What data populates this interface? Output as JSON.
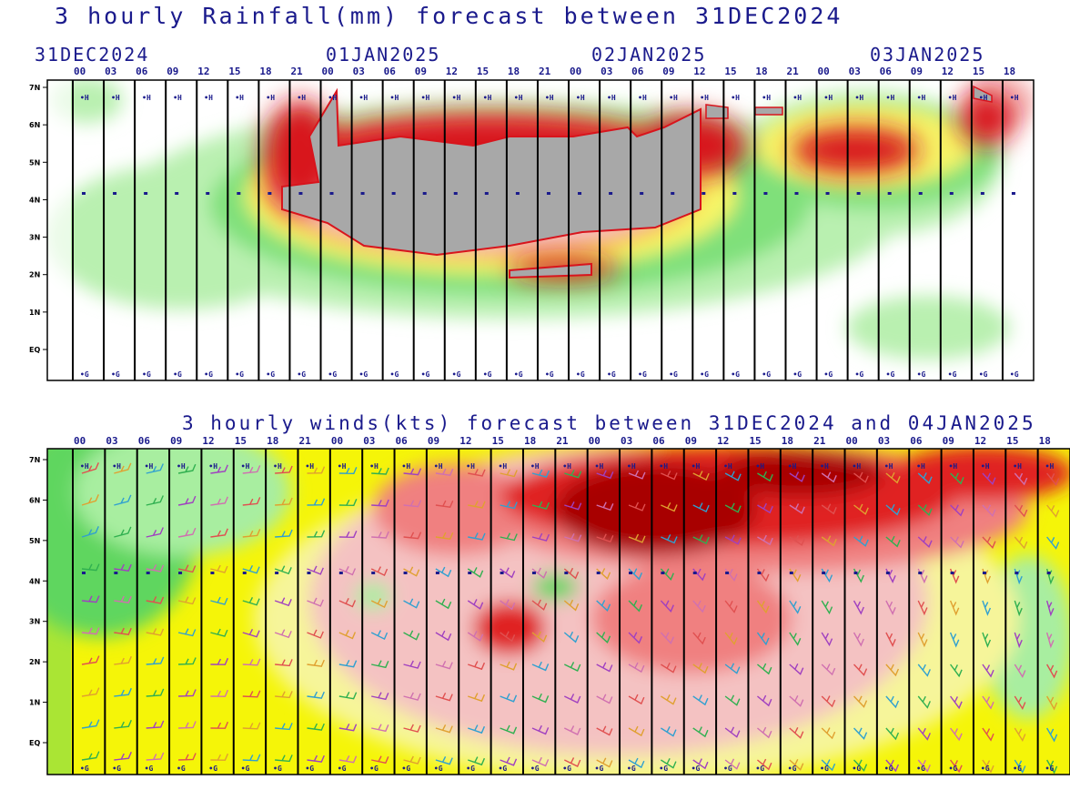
{
  "rainfall": {
    "title": "3 hourly Rainfall(mm) forecast between 31DEC2024",
    "dates": [
      "31DEC2024",
      "01JAN2025",
      "02JAN2025",
      "03JAN2025"
    ],
    "hours": [
      "00",
      "03",
      "06",
      "09",
      "12",
      "15",
      "18",
      "21",
      "00",
      "03",
      "06",
      "09",
      "12",
      "15",
      "18",
      "21",
      "00",
      "03",
      "06",
      "09",
      "12",
      "15",
      "18",
      "21",
      "00",
      "03",
      "06",
      "09",
      "12",
      "15",
      "18"
    ],
    "lat_labels": [
      "7N",
      "6N",
      "5N",
      "4N",
      "3N",
      "2N",
      "1N",
      "EQ"
    ],
    "markers": {
      "top": "H",
      "bottom": "G"
    },
    "colors": {
      "light_green": "#b9f0b0",
      "green": "#7fe07a",
      "yellow": "#f7f566",
      "orange": "#f7a840",
      "red": "#d8141c",
      "pink": "#f6c0c0",
      "gray": "#a8a8a8"
    }
  },
  "winds": {
    "title": "3 hourly winds(kts) forecast between 31DEC2024 and 04JAN2025",
    "hours": [
      "00",
      "03",
      "06",
      "09",
      "12",
      "15",
      "18",
      "21",
      "00",
      "03",
      "06",
      "09",
      "12",
      "15",
      "18",
      "21",
      "00",
      "03",
      "06",
      "09",
      "12",
      "15",
      "18",
      "21",
      "00",
      "03",
      "06",
      "09",
      "12",
      "15",
      "18"
    ],
    "lat_labels": [
      "7N",
      "6N",
      "5N",
      "4N",
      "3N",
      "2N",
      "1N",
      "EQ"
    ],
    "markers": {
      "top": "H",
      "bottom": "G"
    },
    "colors": {
      "green": "#5fd65f",
      "light_green": "#a8eea0",
      "yellow": "#f5f508",
      "pale_yellow": "#f6f59a",
      "pink": "#f4c2c2",
      "light_red": "#f08080",
      "red": "#e02020",
      "dark_red": "#a80000"
    },
    "barb_colors": [
      "#e05050",
      "#e0a030",
      "#30a0d0",
      "#30b050",
      "#a040c0",
      "#d070b0"
    ]
  },
  "chart_data": [
    {
      "type": "heatmap",
      "title": "3 hourly Rainfall(mm) forecast between 31DEC2024",
      "x_categories": [
        "00",
        "03",
        "06",
        "09",
        "12",
        "15",
        "18",
        "21",
        "00",
        "03",
        "06",
        "09",
        "12",
        "15",
        "18",
        "21",
        "00",
        "03",
        "06",
        "09",
        "12",
        "15",
        "18",
        "21",
        "00",
        "03",
        "06",
        "09",
        "12",
        "15",
        "18"
      ],
      "x_date_groups": [
        "31DEC2024",
        "01JAN2025",
        "02JAN2025",
        "03JAN2025"
      ],
      "y_categories": [
        "7N",
        "6N",
        "5N",
        "4N",
        "3N",
        "2N",
        "1N",
        "EQ"
      ],
      "variable": "rainfall (mm)",
      "peak_region": "2N-6N, 01JAN2025 - 02JAN2025"
    },
    {
      "type": "heatmap",
      "title": "3 hourly winds(kts) forecast between 31DEC2024 and 04JAN2025",
      "x_categories": [
        "00",
        "03",
        "06",
        "09",
        "12",
        "15",
        "18",
        "21",
        "00",
        "03",
        "06",
        "09",
        "12",
        "15",
        "18",
        "21",
        "00",
        "03",
        "06",
        "09",
        "12",
        "15",
        "18",
        "21",
        "00",
        "03",
        "06",
        "09",
        "12",
        "15",
        "18"
      ],
      "y_categories": [
        "7N",
        "6N",
        "5N",
        "4N",
        "3N",
        "2N",
        "1N",
        "EQ"
      ],
      "variable": "wind speed (kts) with wind barbs",
      "peak_region": "5N-7N, 02JAN2025 - 03JAN2025"
    }
  ]
}
